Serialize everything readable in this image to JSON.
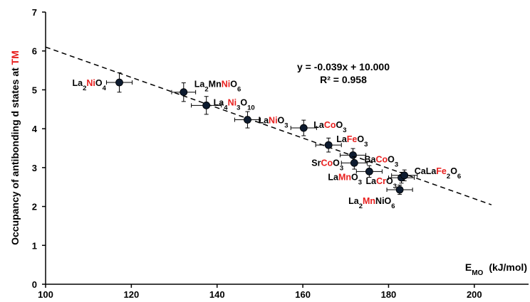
{
  "chart_data": {
    "type": "scatter",
    "title": "",
    "xlabel": {
      "main": "E",
      "sub": "MO",
      "unit": "(kJ/mol)"
    },
    "ylabel": [
      {
        "text": "Occupancy of antibonding d states at ",
        "color": "#000000"
      },
      {
        "text": "TM",
        "color": "#e8201f"
      }
    ],
    "xlim": [
      100,
      210
    ],
    "ylim": [
      0,
      7
    ],
    "xticks": [
      "100",
      "120",
      "140",
      "160",
      "180",
      "200"
    ],
    "yticks": [
      "0",
      "1",
      "2",
      "3",
      "4",
      "5",
      "6",
      "7"
    ],
    "grid": false,
    "highlight_color": "#e8201f",
    "points": [
      {
        "x": 117.2,
        "y": 5.19,
        "xerr": 3.0,
        "yerr": 0.25,
        "label": [
          {
            "t": "La"
          },
          {
            "t": "2",
            "sub": true
          },
          {
            "t": "Ni",
            "red": true
          },
          {
            "t": "O"
          },
          {
            "t": "4",
            "sub": true
          }
        ]
      },
      {
        "x": 132.2,
        "y": 4.94,
        "xerr": 2.8,
        "yerr": 0.24,
        "label": [
          {
            "t": "La"
          },
          {
            "t": "2",
            "sub": true
          },
          {
            "t": "Mn"
          },
          {
            "t": "Ni",
            "red": true
          },
          {
            "t": "O"
          },
          {
            "t": "6",
            "sub": true
          }
        ]
      },
      {
        "x": 137.5,
        "y": 4.6,
        "xerr": 3.5,
        "yerr": 0.23,
        "label": [
          {
            "t": "La"
          },
          {
            "t": "4",
            "sub": true
          },
          {
            "t": "Ni",
            "red": true
          },
          {
            "t": "3",
            "sub": true
          },
          {
            "t": "O"
          },
          {
            "t": "10",
            "sub": true
          }
        ]
      },
      {
        "x": 147.1,
        "y": 4.23,
        "xerr": 3.0,
        "yerr": 0.21,
        "label": [
          {
            "t": "La"
          },
          {
            "t": "Ni",
            "red": true
          },
          {
            "t": "O"
          },
          {
            "t": "3",
            "sub": true
          }
        ]
      },
      {
        "x": 160.2,
        "y": 4.02,
        "xerr": 3.0,
        "yerr": 0.2,
        "label": [
          {
            "t": "La"
          },
          {
            "t": "Co",
            "red": true
          },
          {
            "t": "O"
          },
          {
            "t": "3",
            "sub": true
          }
        ]
      },
      {
        "x": 166.0,
        "y": 3.58,
        "xerr": 3.0,
        "yerr": 0.18,
        "label": [
          {
            "t": "La"
          },
          {
            "t": "Fe",
            "red": true
          },
          {
            "t": "O"
          },
          {
            "t": "3",
            "sub": true
          }
        ]
      },
      {
        "x": 171.7,
        "y": 3.32,
        "xerr": 3.0,
        "yerr": 0.17,
        "label": [
          {
            "t": "Ba"
          },
          {
            "t": "Co",
            "red": true
          },
          {
            "t": "O"
          },
          {
            "t": "3",
            "sub": true
          }
        ]
      },
      {
        "x": 172.0,
        "y": 3.12,
        "xerr": 3.0,
        "yerr": 0.16,
        "label": [
          {
            "t": "Sr"
          },
          {
            "t": "Co",
            "red": true
          },
          {
            "t": "O"
          },
          {
            "t": "3",
            "sub": true
          }
        ]
      },
      {
        "x": 175.5,
        "y": 2.9,
        "xerr": 3.0,
        "yerr": 0.15,
        "label": [
          {
            "t": "La"
          },
          {
            "t": "Mn",
            "red": true
          },
          {
            "t": "O"
          },
          {
            "t": "3",
            "sub": true
          }
        ]
      },
      {
        "x": 182.6,
        "y": 2.43,
        "xerr": 3.0,
        "yerr": 0.12,
        "label": [
          {
            "t": "La"
          },
          {
            "t": "2",
            "sub": true
          },
          {
            "t": "Mn",
            "red": true
          },
          {
            "t": "Ni"
          },
          {
            "t": "O"
          },
          {
            "t": "6",
            "sub": true
          }
        ]
      },
      {
        "x": 183.0,
        "y": 2.74,
        "xerr": 3.0,
        "yerr": 0.14,
        "label": [
          {
            "t": "La"
          },
          {
            "t": "Cr",
            "red": true
          },
          {
            "t": "O"
          },
          {
            "t": "3",
            "sub": true
          }
        ]
      },
      {
        "x": 183.7,
        "y": 2.8,
        "xerr": 3.0,
        "yerr": 0.14,
        "label": [
          {
            "t": "CaLa"
          },
          {
            "t": "Fe",
            "red": true
          },
          {
            "t": "2",
            "sub": true
          },
          {
            "t": "O"
          },
          {
            "t": "6",
            "sub": true
          }
        ]
      }
    ],
    "fit": {
      "type": "linear",
      "slope": -0.039,
      "intercept": 10.0,
      "x_range": [
        100,
        204
      ],
      "style": "dashed",
      "equation": "y = -0.039x + 10.000",
      "r_squared": "R² = 0.958"
    }
  }
}
